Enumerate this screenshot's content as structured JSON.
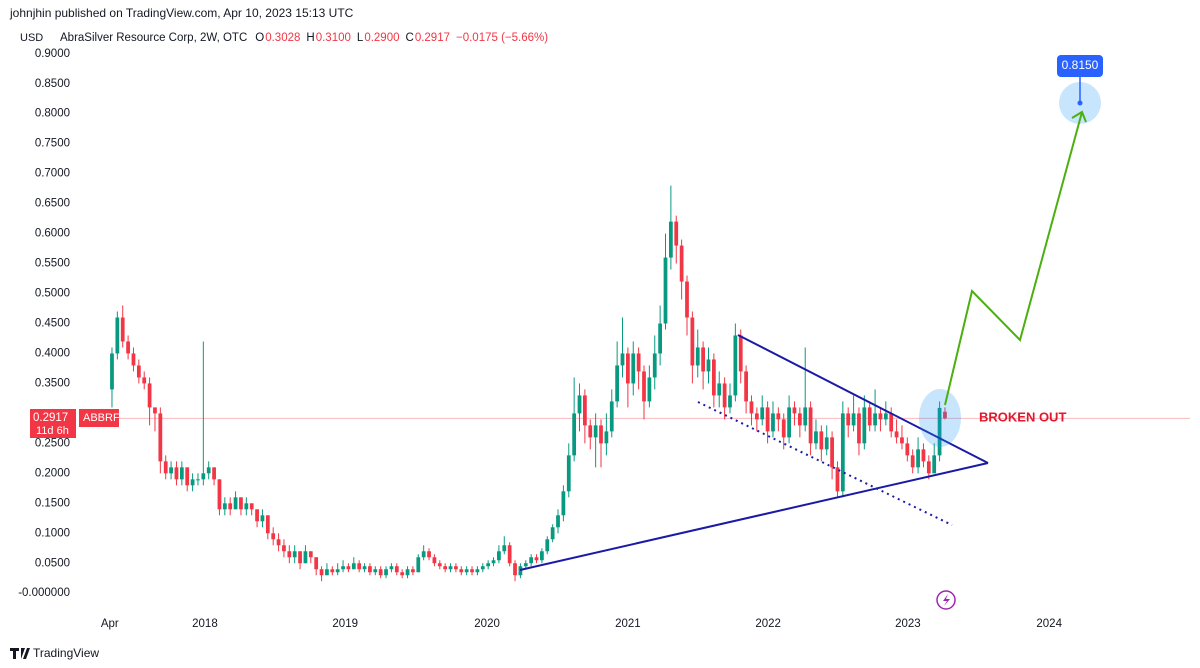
{
  "chart_data": {
    "type": "candlestick",
    "header": "johnjhin published on TradingView.com, Apr 10, 2023 15:13 UTC",
    "currency": "USD",
    "legend": {
      "name": "AbraSilver Resource Corp, 2W, OTC",
      "fields": [
        {
          "label": "O",
          "value": "0.3028"
        },
        {
          "label": "H",
          "value": "0.3100"
        },
        {
          "label": "L",
          "value": "0.2900"
        },
        {
          "label": "C",
          "value": "0.2917"
        }
      ],
      "change": "−0.0175 (−5.66%)"
    },
    "symbol": "ABBRF",
    "countdown": "11d 6h",
    "up_color": "#089981",
    "down_color": "#f23645",
    "ylim": [
      -0.028,
      0.948
    ],
    "yticks": [
      {
        "value": 0.9,
        "label": "0.9000"
      },
      {
        "value": 0.85,
        "label": "0.8500"
      },
      {
        "value": 0.8,
        "label": "0.8000"
      },
      {
        "value": 0.75,
        "label": "0.7500"
      },
      {
        "value": 0.7,
        "label": "0.7000"
      },
      {
        "value": 0.65,
        "label": "0.6500"
      },
      {
        "value": 0.6,
        "label": "0.6000"
      },
      {
        "value": 0.55,
        "label": "0.5500"
      },
      {
        "value": 0.5,
        "label": "0.5000"
      },
      {
        "value": 0.45,
        "label": "0.4500"
      },
      {
        "value": 0.4,
        "label": "0.4000"
      },
      {
        "value": 0.35,
        "label": "0.3500"
      },
      {
        "value": 0.25,
        "label": "0.2500"
      },
      {
        "value": 0.2,
        "label": "0.2000"
      },
      {
        "value": 0.15,
        "label": "0.1500"
      },
      {
        "value": 0.1,
        "label": "0.1000"
      },
      {
        "value": 0.05,
        "label": "0.0500"
      },
      {
        "value": 0,
        "label": "-0.000000"
      }
    ],
    "xlim": [
      -5.95,
      200.6
    ],
    "xticks": [
      {
        "value": -0.4,
        "label": "Apr"
      },
      {
        "value": 17.3,
        "label": "2018"
      },
      {
        "value": 43.4,
        "label": "2019"
      },
      {
        "value": 69.8,
        "label": "2020"
      },
      {
        "value": 96.0,
        "label": "2021"
      },
      {
        "value": 122.1,
        "label": "2022"
      },
      {
        "value": 148.1,
        "label": "2023"
      },
      {
        "value": 174.4,
        "label": "2024"
      }
    ],
    "candles": [
      [
        0.34,
        0.41,
        0.31,
        0.4
      ],
      [
        0.4,
        0.47,
        0.39,
        0.46
      ],
      [
        0.46,
        0.48,
        0.41,
        0.42
      ],
      [
        0.42,
        0.43,
        0.39,
        0.4
      ],
      [
        0.4,
        0.41,
        0.37,
        0.38
      ],
      [
        0.38,
        0.39,
        0.35,
        0.36
      ],
      [
        0.36,
        0.37,
        0.34,
        0.35
      ],
      [
        0.35,
        0.36,
        0.28,
        0.31
      ],
      [
        0.31,
        0.31,
        0.27,
        0.3
      ],
      [
        0.3,
        0.31,
        0.2,
        0.22
      ],
      [
        0.22,
        0.23,
        0.19,
        0.2
      ],
      [
        0.2,
        0.22,
        0.19,
        0.21
      ],
      [
        0.21,
        0.22,
        0.18,
        0.19
      ],
      [
        0.19,
        0.22,
        0.18,
        0.21
      ],
      [
        0.21,
        0.21,
        0.17,
        0.18
      ],
      [
        0.18,
        0.2,
        0.17,
        0.19
      ],
      [
        0.19,
        0.2,
        0.18,
        0.19
      ],
      [
        0.19,
        0.42,
        0.18,
        0.2
      ],
      [
        0.2,
        0.22,
        0.19,
        0.21
      ],
      [
        0.21,
        0.21,
        0.18,
        0.19
      ],
      [
        0.19,
        0.19,
        0.13,
        0.14
      ],
      [
        0.14,
        0.16,
        0.13,
        0.15
      ],
      [
        0.15,
        0.16,
        0.13,
        0.14
      ],
      [
        0.14,
        0.17,
        0.14,
        0.16
      ],
      [
        0.16,
        0.16,
        0.13,
        0.14
      ],
      [
        0.14,
        0.16,
        0.13,
        0.15
      ],
      [
        0.15,
        0.15,
        0.13,
        0.14
      ],
      [
        0.14,
        0.14,
        0.11,
        0.12
      ],
      [
        0.12,
        0.14,
        0.11,
        0.13
      ],
      [
        0.13,
        0.13,
        0.09,
        0.1
      ],
      [
        0.1,
        0.11,
        0.08,
        0.09
      ],
      [
        0.09,
        0.1,
        0.07,
        0.08
      ],
      [
        0.08,
        0.09,
        0.06,
        0.07
      ],
      [
        0.07,
        0.08,
        0.05,
        0.06
      ],
      [
        0.06,
        0.08,
        0.05,
        0.07
      ],
      [
        0.07,
        0.07,
        0.04,
        0.05
      ],
      [
        0.05,
        0.08,
        0.05,
        0.07
      ],
      [
        0.07,
        0.07,
        0.05,
        0.06
      ],
      [
        0.06,
        0.06,
        0.03,
        0.04
      ],
      [
        0.04,
        0.045,
        0.02,
        0.03
      ],
      [
        0.03,
        0.05,
        0.03,
        0.04
      ],
      [
        0.04,
        0.045,
        0.03,
        0.035
      ],
      [
        0.035,
        0.05,
        0.03,
        0.04
      ],
      [
        0.04,
        0.055,
        0.035,
        0.045
      ],
      [
        0.045,
        0.05,
        0.035,
        0.04
      ],
      [
        0.04,
        0.06,
        0.04,
        0.05
      ],
      [
        0.05,
        0.055,
        0.035,
        0.04
      ],
      [
        0.04,
        0.05,
        0.035,
        0.045
      ],
      [
        0.045,
        0.05,
        0.03,
        0.035
      ],
      [
        0.035,
        0.045,
        0.03,
        0.04
      ],
      [
        0.04,
        0.045,
        0.025,
        0.03
      ],
      [
        0.03,
        0.045,
        0.025,
        0.04
      ],
      [
        0.04,
        0.05,
        0.035,
        0.045
      ],
      [
        0.045,
        0.05,
        0.03,
        0.035
      ],
      [
        0.035,
        0.04,
        0.025,
        0.03
      ],
      [
        0.03,
        0.045,
        0.025,
        0.04
      ],
      [
        0.04,
        0.045,
        0.03,
        0.035
      ],
      [
        0.035,
        0.065,
        0.035,
        0.06
      ],
      [
        0.06,
        0.08,
        0.055,
        0.07
      ],
      [
        0.07,
        0.075,
        0.055,
        0.06
      ],
      [
        0.06,
        0.065,
        0.045,
        0.05
      ],
      [
        0.05,
        0.055,
        0.04,
        0.045
      ],
      [
        0.045,
        0.05,
        0.035,
        0.04
      ],
      [
        0.04,
        0.05,
        0.035,
        0.045
      ],
      [
        0.045,
        0.05,
        0.035,
        0.04
      ],
      [
        0.04,
        0.045,
        0.03,
        0.035
      ],
      [
        0.035,
        0.045,
        0.03,
        0.04
      ],
      [
        0.04,
        0.045,
        0.03,
        0.035
      ],
      [
        0.035,
        0.045,
        0.03,
        0.04
      ],
      [
        0.04,
        0.05,
        0.035,
        0.045
      ],
      [
        0.045,
        0.055,
        0.04,
        0.05
      ],
      [
        0.05,
        0.06,
        0.045,
        0.055
      ],
      [
        0.055,
        0.08,
        0.05,
        0.07
      ],
      [
        0.07,
        0.095,
        0.065,
        0.08
      ],
      [
        0.08,
        0.085,
        0.045,
        0.05
      ],
      [
        0.05,
        0.055,
        0.02,
        0.03
      ],
      [
        0.03,
        0.05,
        0.025,
        0.045
      ],
      [
        0.045,
        0.055,
        0.04,
        0.05
      ],
      [
        0.05,
        0.065,
        0.045,
        0.06
      ],
      [
        0.06,
        0.065,
        0.05,
        0.055
      ],
      [
        0.055,
        0.075,
        0.05,
        0.07
      ],
      [
        0.07,
        0.095,
        0.065,
        0.09
      ],
      [
        0.09,
        0.115,
        0.085,
        0.11
      ],
      [
        0.11,
        0.14,
        0.1,
        0.13
      ],
      [
        0.13,
        0.18,
        0.12,
        0.17
      ],
      [
        0.17,
        0.25,
        0.16,
        0.23
      ],
      [
        0.23,
        0.36,
        0.22,
        0.3
      ],
      [
        0.3,
        0.35,
        0.27,
        0.33
      ],
      [
        0.33,
        0.34,
        0.25,
        0.28
      ],
      [
        0.28,
        0.29,
        0.24,
        0.26
      ],
      [
        0.26,
        0.3,
        0.21,
        0.28
      ],
      [
        0.28,
        0.29,
        0.21,
        0.25
      ],
      [
        0.25,
        0.3,
        0.23,
        0.27
      ],
      [
        0.27,
        0.34,
        0.26,
        0.32
      ],
      [
        0.32,
        0.42,
        0.31,
        0.38
      ],
      [
        0.38,
        0.46,
        0.36,
        0.4
      ],
      [
        0.4,
        0.41,
        0.31,
        0.35
      ],
      [
        0.35,
        0.42,
        0.33,
        0.4
      ],
      [
        0.4,
        0.41,
        0.34,
        0.37
      ],
      [
        0.37,
        0.38,
        0.29,
        0.32
      ],
      [
        0.32,
        0.38,
        0.31,
        0.36
      ],
      [
        0.36,
        0.43,
        0.34,
        0.4
      ],
      [
        0.4,
        0.48,
        0.38,
        0.45
      ],
      [
        0.45,
        0.6,
        0.44,
        0.56
      ],
      [
        0.56,
        0.68,
        0.54,
        0.62
      ],
      [
        0.62,
        0.63,
        0.55,
        0.58
      ],
      [
        0.58,
        0.59,
        0.49,
        0.52
      ],
      [
        0.52,
        0.53,
        0.43,
        0.46
      ],
      [
        0.46,
        0.47,
        0.35,
        0.38
      ],
      [
        0.38,
        0.44,
        0.36,
        0.41
      ],
      [
        0.41,
        0.42,
        0.34,
        0.37
      ],
      [
        0.37,
        0.41,
        0.35,
        0.39
      ],
      [
        0.39,
        0.4,
        0.31,
        0.33
      ],
      [
        0.33,
        0.37,
        0.31,
        0.35
      ],
      [
        0.35,
        0.36,
        0.29,
        0.31
      ],
      [
        0.31,
        0.35,
        0.3,
        0.33
      ],
      [
        0.33,
        0.45,
        0.32,
        0.43
      ],
      [
        0.43,
        0.44,
        0.35,
        0.37
      ],
      [
        0.37,
        0.38,
        0.3,
        0.32
      ],
      [
        0.32,
        0.33,
        0.28,
        0.3
      ],
      [
        0.3,
        0.31,
        0.27,
        0.29
      ],
      [
        0.29,
        0.33,
        0.28,
        0.31
      ],
      [
        0.31,
        0.32,
        0.25,
        0.27
      ],
      [
        0.27,
        0.32,
        0.26,
        0.3
      ],
      [
        0.3,
        0.31,
        0.27,
        0.29
      ],
      [
        0.29,
        0.3,
        0.24,
        0.26
      ],
      [
        0.26,
        0.33,
        0.25,
        0.31
      ],
      [
        0.31,
        0.32,
        0.28,
        0.3
      ],
      [
        0.3,
        0.31,
        0.26,
        0.28
      ],
      [
        0.28,
        0.41,
        0.27,
        0.31
      ],
      [
        0.31,
        0.32,
        0.23,
        0.25
      ],
      [
        0.25,
        0.29,
        0.24,
        0.27
      ],
      [
        0.27,
        0.28,
        0.22,
        0.24
      ],
      [
        0.24,
        0.28,
        0.23,
        0.26
      ],
      [
        0.26,
        0.27,
        0.19,
        0.21
      ],
      [
        0.21,
        0.22,
        0.16,
        0.17
      ],
      [
        0.17,
        0.32,
        0.16,
        0.3
      ],
      [
        0.3,
        0.31,
        0.26,
        0.28
      ],
      [
        0.28,
        0.33,
        0.27,
        0.3
      ],
      [
        0.3,
        0.31,
        0.23,
        0.25
      ],
      [
        0.25,
        0.33,
        0.24,
        0.31
      ],
      [
        0.31,
        0.32,
        0.27,
        0.28
      ],
      [
        0.28,
        0.34,
        0.27,
        0.3
      ],
      [
        0.3,
        0.31,
        0.27,
        0.29
      ],
      [
        0.29,
        0.32,
        0.28,
        0.3
      ],
      [
        0.3,
        0.31,
        0.26,
        0.27
      ],
      [
        0.27,
        0.29,
        0.25,
        0.26
      ],
      [
        0.26,
        0.28,
        0.24,
        0.25
      ],
      [
        0.25,
        0.26,
        0.22,
        0.23
      ],
      [
        0.23,
        0.24,
        0.2,
        0.21
      ],
      [
        0.21,
        0.26,
        0.2,
        0.24
      ],
      [
        0.24,
        0.25,
        0.21,
        0.22
      ],
      [
        0.22,
        0.23,
        0.19,
        0.2
      ],
      [
        0.2,
        0.25,
        0.2,
        0.23
      ],
      [
        0.23,
        0.32,
        0.22,
        0.3092
      ],
      [
        0.3028,
        0.31,
        0.29,
        0.2917
      ]
    ],
    "annotations": {
      "target": "0.8150",
      "breakout": "BROKEN OUT"
    },
    "footer": "TradingView"
  }
}
